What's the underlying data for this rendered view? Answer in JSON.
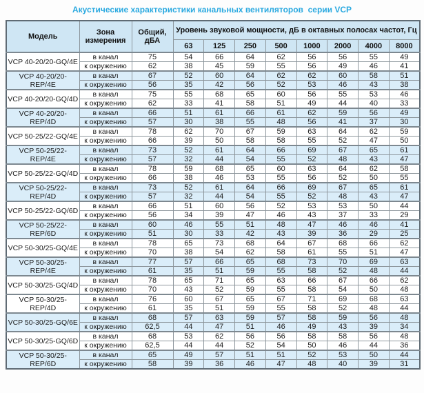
{
  "title": "Акустические характеристики канальных вентиляторов  серии VCP",
  "colors": {
    "title_text": "#2aa9e0",
    "header_bg": "#cfe6f4",
    "shaded_row_bg": "#daedf9",
    "grid_border": "#8d969c",
    "heavy_border": "#5f6b74"
  },
  "table": {
    "headers": {
      "model": "Модель",
      "zone": "Зона измерения",
      "total": "Общий, дБА",
      "band_group": "Уровень звуковой мощности, дБ в октавных полосах частот, Гц",
      "bands": [
        "63",
        "125",
        "250",
        "500",
        "1000",
        "2000",
        "4000",
        "8000"
      ]
    },
    "groups": [
      {
        "model": "VCP 40-20/20-GQ/4E",
        "shaded": false,
        "rows": [
          {
            "zone": "в канал",
            "total": "75",
            "bands": [
              "54",
              "66",
              "64",
              "62",
              "56",
              "56",
              "55",
              "49"
            ]
          },
          {
            "zone": "к окружению",
            "total": "62",
            "bands": [
              "38",
              "45",
              "59",
              "55",
              "56",
              "49",
              "46",
              "41"
            ]
          }
        ]
      },
      {
        "model": "VCP 40-20/20-REP/4E",
        "shaded": true,
        "rows": [
          {
            "zone": "в канал",
            "total": "67",
            "bands": [
              "52",
              "60",
              "64",
              "62",
              "62",
              "60",
              "58",
              "51"
            ]
          },
          {
            "zone": "к окружению",
            "total": "56",
            "bands": [
              "35",
              "42",
              "56",
              "52",
              "53",
              "46",
              "43",
              "38"
            ]
          }
        ]
      },
      {
        "model": "VCP 40-20/20-GQ/4D",
        "shaded": false,
        "rows": [
          {
            "zone": "в канал",
            "total": "75",
            "bands": [
              "55",
              "68",
              "65",
              "60",
              "56",
              "55",
              "53",
              "46"
            ]
          },
          {
            "zone": "к окружению",
            "total": "62",
            "bands": [
              "33",
              "41",
              "58",
              "51",
              "49",
              "44",
              "40",
              "33"
            ]
          }
        ]
      },
      {
        "model": "VCP 40-20/20-REP/4D",
        "shaded": true,
        "rows": [
          {
            "zone": "в канал",
            "total": "66",
            "bands": [
              "51",
              "61",
              "66",
              "61",
              "62",
              "59",
              "56",
              "49"
            ]
          },
          {
            "zone": "к окружению",
            "total": "57",
            "bands": [
              "30",
              "38",
              "55",
              "48",
              "56",
              "41",
              "37",
              "30"
            ]
          }
        ]
      },
      {
        "model": "VCP 50-25/22-GQ/4E",
        "shaded": false,
        "rows": [
          {
            "zone": "в канал",
            "total": "78",
            "bands": [
              "62",
              "70",
              "67",
              "59",
              "63",
              "64",
              "62",
              "59"
            ]
          },
          {
            "zone": "к окружению",
            "total": "66",
            "bands": [
              "39",
              "50",
              "58",
              "58",
              "55",
              "52",
              "47",
              "50"
            ]
          }
        ]
      },
      {
        "model": "VCP 50-25/22-REP/4E",
        "shaded": true,
        "rows": [
          {
            "zone": "в канал",
            "total": "73",
            "bands": [
              "52",
              "61",
              "64",
              "66",
              "69",
              "67",
              "65",
              "61"
            ]
          },
          {
            "zone": "к окружению",
            "total": "57",
            "bands": [
              "32",
              "44",
              "54",
              "55",
              "52",
              "48",
              "43",
              "47"
            ]
          }
        ]
      },
      {
        "model": "VCP 50-25/22-GQ/4D",
        "shaded": false,
        "rows": [
          {
            "zone": "в канал",
            "total": "78",
            "bands": [
              "59",
              "68",
              "65",
              "60",
              "63",
              "64",
              "62",
              "58"
            ]
          },
          {
            "zone": "к окружению",
            "total": "66",
            "bands": [
              "38",
              "46",
              "53",
              "55",
              "56",
              "52",
              "50",
              "55"
            ]
          }
        ]
      },
      {
        "model": "VCP 50-25/22-REP/4D",
        "shaded": true,
        "rows": [
          {
            "zone": "в канал",
            "total": "73",
            "bands": [
              "52",
              "61",
              "64",
              "66",
              "69",
              "67",
              "65",
              "61"
            ]
          },
          {
            "zone": "к окружению",
            "total": "57",
            "bands": [
              "32",
              "44",
              "54",
              "55",
              "52",
              "48",
              "43",
              "47"
            ]
          }
        ]
      },
      {
        "model": "VCP 50-25/22-GQ/6D",
        "shaded": false,
        "rows": [
          {
            "zone": "в канал",
            "total": "66",
            "bands": [
              "51",
              "60",
              "56",
              "52",
              "53",
              "53",
              "50",
              "44"
            ]
          },
          {
            "zone": "к окружению",
            "total": "56",
            "bands": [
              "34",
              "39",
              "47",
              "46",
              "43",
              "37",
              "33",
              "29"
            ]
          }
        ]
      },
      {
        "model": "VCP 50-25/22-REP/6D",
        "shaded": true,
        "rows": [
          {
            "zone": "в канал",
            "total": "60",
            "bands": [
              "46",
              "55",
              "51",
              "48",
              "47",
              "46",
              "46",
              "41"
            ]
          },
          {
            "zone": "к окружению",
            "total": "51",
            "bands": [
              "30",
              "33",
              "42",
              "43",
              "39",
              "36",
              "29",
              "25"
            ]
          }
        ]
      },
      {
        "model": "VCP 50-30/25-GQ/4E",
        "shaded": false,
        "rows": [
          {
            "zone": "в канал",
            "total": "78",
            "bands": [
              "65",
              "73",
              "68",
              "64",
              "67",
              "68",
              "66",
              "62"
            ]
          },
          {
            "zone": "к окружению",
            "total": "70",
            "bands": [
              "38",
              "54",
              "62",
              "58",
              "61",
              "55",
              "51",
              "47"
            ]
          }
        ]
      },
      {
        "model": "VCP 50-30/25-REP/4E",
        "shaded": true,
        "rows": [
          {
            "zone": "в канал",
            "total": "77",
            "bands": [
              "57",
              "66",
              "65",
              "68",
              "73",
              "70",
              "69",
              "63"
            ]
          },
          {
            "zone": "к окружению",
            "total": "61",
            "bands": [
              "35",
              "51",
              "59",
              "55",
              "58",
              "52",
              "48",
              "44"
            ]
          }
        ]
      },
      {
        "model": "VCP 50-30/25-GQ/4D",
        "shaded": false,
        "rows": [
          {
            "zone": "в канал",
            "total": "78",
            "bands": [
              "65",
              "71",
              "65",
              "63",
              "66",
              "67",
              "66",
              "62"
            ]
          },
          {
            "zone": "к окружению",
            "total": "70",
            "bands": [
              "43",
              "52",
              "59",
              "55",
              "58",
              "54",
              "50",
              "48"
            ]
          }
        ]
      },
      {
        "model": "VCP 50-30/25-REP/4D",
        "shaded": false,
        "rows": [
          {
            "zone": "в канал",
            "total": "76",
            "bands": [
              "60",
              "67",
              "65",
              "67",
              "71",
              "69",
              "68",
              "63"
            ]
          },
          {
            "zone": "к окружению",
            "total": "61",
            "bands": [
              "35",
              "51",
              "59",
              "55",
              "58",
              "52",
              "48",
              "44"
            ]
          }
        ]
      },
      {
        "model": "VCP 50-30/25-GQ/6E",
        "shaded": true,
        "rows": [
          {
            "zone": "в канал",
            "total": "68",
            "bands": [
              "57",
              "63",
              "59",
              "57",
              "58",
              "59",
              "56",
              "48"
            ]
          },
          {
            "zone": "к окружению",
            "total": "62,5",
            "bands": [
              "44",
              "47",
              "51",
              "46",
              "49",
              "43",
              "39",
              "34"
            ]
          }
        ]
      },
      {
        "model": "VCP 50-30/25-GQ/6D",
        "shaded": false,
        "rows": [
          {
            "zone": "в канал",
            "total": "68",
            "bands": [
              "53",
              "62",
              "56",
              "56",
              "58",
              "58",
              "56",
              "48"
            ]
          },
          {
            "zone": "к окружению",
            "total": "62,5",
            "bands": [
              "44",
              "44",
              "52",
              "54",
              "50",
              "46",
              "44",
              "36"
            ]
          }
        ]
      },
      {
        "model": "VCP 50-30/25-REP/6D",
        "shaded": true,
        "rows": [
          {
            "zone": "в канал",
            "total": "65",
            "bands": [
              "49",
              "57",
              "51",
              "51",
              "52",
              "53",
              "50",
              "44"
            ]
          },
          {
            "zone": "к окружению",
            "total": "58",
            "bands": [
              "39",
              "36",
              "46",
              "47",
              "48",
              "40",
              "39",
              "31"
            ]
          }
        ]
      }
    ]
  }
}
